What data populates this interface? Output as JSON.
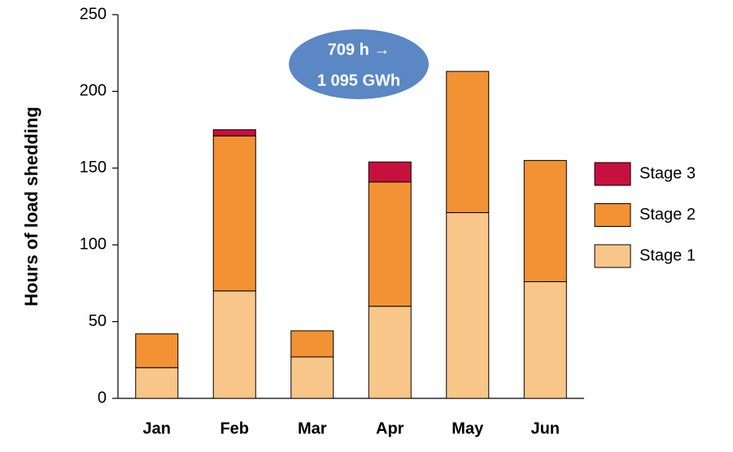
{
  "chart_data": {
    "type": "stacked_bar",
    "y_label": "Hours of load shedding",
    "annotation": [
      "709 h →",
      "1 095 GWh"
    ],
    "categories": [
      "Jan",
      "Feb",
      "Mar",
      "Apr",
      "May",
      "Jun"
    ],
    "series": [
      {
        "name": "Stage 1",
        "color": "#f9c68a",
        "values": [
          20,
          70,
          27,
          60,
          121,
          76
        ]
      },
      {
        "name": "Stage 2",
        "color": "#f39234",
        "values": [
          22,
          101,
          17,
          81,
          92,
          79
        ]
      },
      {
        "name": "Stage 3",
        "color": "#c8103e",
        "values": [
          0,
          4,
          0,
          13,
          0,
          0
        ]
      }
    ],
    "ylim": [
      0,
      250
    ],
    "yticks": [
      0,
      50,
      100,
      150,
      200,
      250
    ],
    "grid": false,
    "legend": "right"
  }
}
